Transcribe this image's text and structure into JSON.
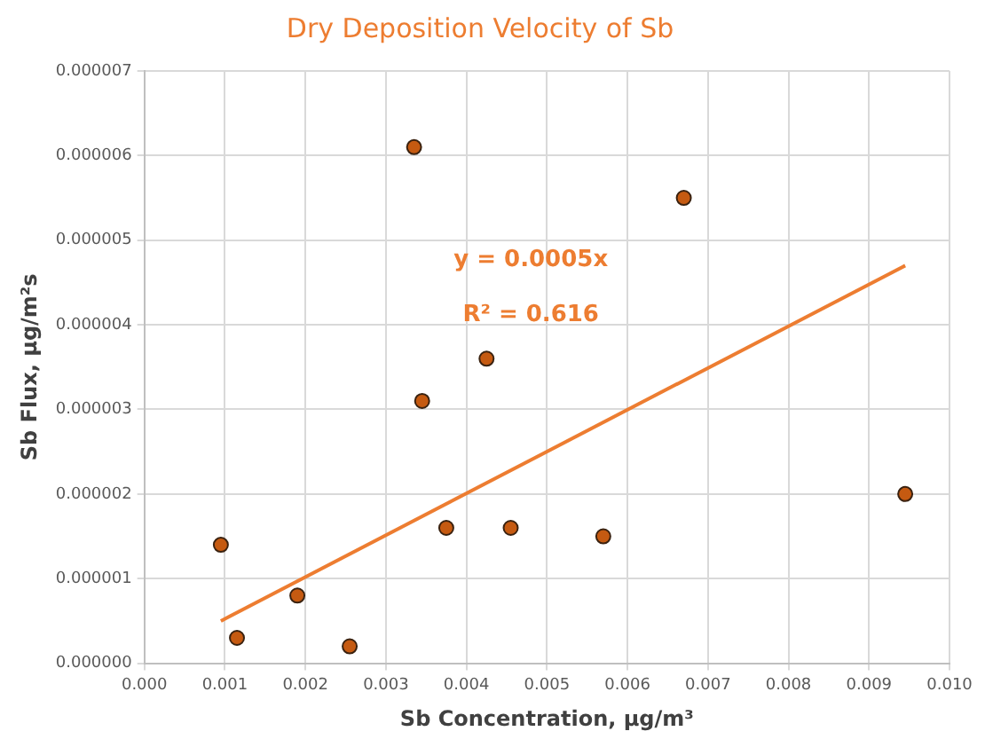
{
  "chart_data": {
    "type": "scatter",
    "title": "Dry Deposition Velocity of Sb",
    "xlabel": "Sb Concentration, μg/m³",
    "ylabel": "Sb Flux, μg/m²s",
    "series": [
      {
        "color": "#c55a11",
        "marker": "circle",
        "x": [
          0.00095,
          0.00115,
          0.0019,
          0.00255,
          0.00335,
          0.00345,
          0.00375,
          0.00425,
          0.00455,
          0.0057,
          0.0067,
          0.00945
        ],
        "values": [
          1.4e-06,
          3e-07,
          8e-07,
          2e-07,
          6.1e-06,
          3.1e-06,
          1.6e-06,
          3.6e-06,
          1.6e-06,
          1.5e-06,
          5.5e-06,
          2e-06
        ]
      },
      {
        "type": "line",
        "color": "#ed7d31",
        "marker": "none",
        "x": [
          0.00095,
          0.00945
        ],
        "values": [
          5e-07,
          4.7e-06
        ]
      }
    ],
    "annotations": [
      "y = 0.0005x",
      "R² = 0.616"
    ],
    "xlim": [
      0,
      0.01
    ],
    "xticks": [
      {
        "value": 0,
        "label": "0.000"
      },
      {
        "value": 0.001,
        "label": "0.001"
      },
      {
        "value": 0.002,
        "label": "0.002"
      },
      {
        "value": 0.003,
        "label": "0.003"
      },
      {
        "value": 0.004,
        "label": "0.004"
      },
      {
        "value": 0.005,
        "label": "0.005"
      },
      {
        "value": 0.006,
        "label": "0.006"
      },
      {
        "value": 0.007,
        "label": "0.007"
      },
      {
        "value": 0.008,
        "label": "0.008"
      },
      {
        "value": 0.009,
        "label": "0.009"
      },
      {
        "value": 0.01,
        "label": "0.010"
      }
    ],
    "ylim": [
      0,
      7e-06
    ],
    "yticks": [
      {
        "value": 0,
        "label": "0.000000"
      },
      {
        "value": 1e-06,
        "label": "0.000001"
      },
      {
        "value": 2e-06,
        "label": "0.000002"
      },
      {
        "value": 3e-06,
        "label": "0.000003"
      },
      {
        "value": 4e-06,
        "label": "0.000004"
      },
      {
        "value": 5e-06,
        "label": "0.000005"
      },
      {
        "value": 6e-06,
        "label": "0.000006"
      },
      {
        "value": 7e-06,
        "label": "0.000007"
      }
    ],
    "grid": true,
    "legend": false
  }
}
